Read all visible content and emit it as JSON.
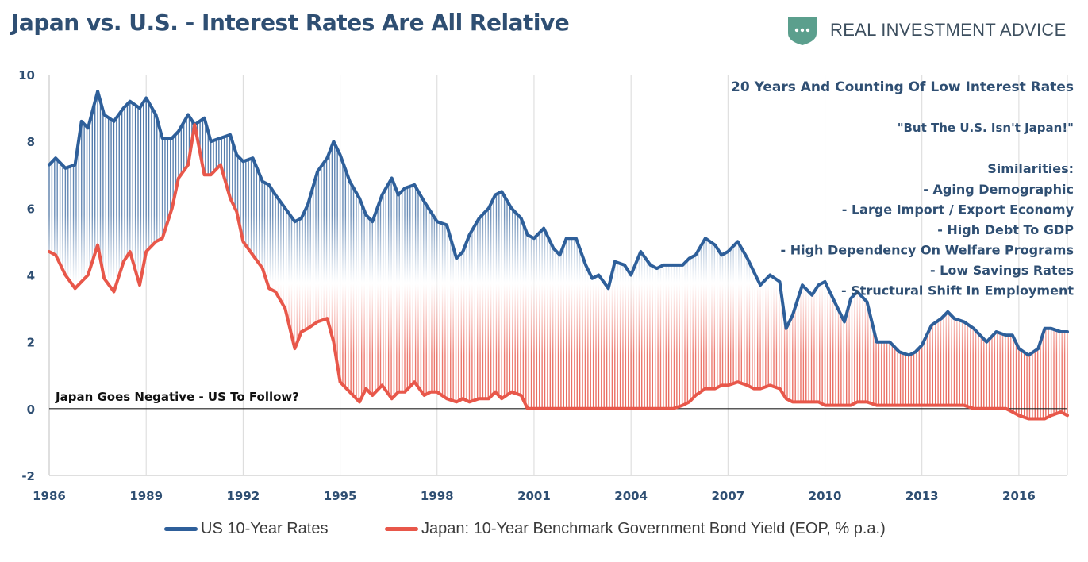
{
  "header": {
    "title": "Japan vs. U.S. - Interest Rates Are All Relative",
    "brand_name_left": "REAL INVESTMENT",
    "brand_name_right": "ADVICE"
  },
  "colors": {
    "us_line": "#2e5f9a",
    "japan_line": "#e8574a",
    "title": "#2f4f73",
    "logo_green": "#5b9f8d"
  },
  "annotations": {
    "headline": "20 Years And Counting Of Low Interest Rates",
    "quote": "\"But The U.S. Isn't Japan!\"",
    "similarities_title": "Similarities:",
    "similarities": [
      "- Aging Demographic",
      "- Large Import /  Export Economy",
      "- High Debt To GDP",
      "- High Dependency On Welfare Programs",
      "- Low Savings Rates",
      "- Structural Shift In Employment"
    ],
    "negative_note": "Japan Goes Negative - US To Follow?"
  },
  "chart_data": {
    "type": "line",
    "x_ticks": [
      "1986",
      "1989",
      "1992",
      "1995",
      "1998",
      "2001",
      "2004",
      "2007",
      "2010",
      "2013",
      "2016"
    ],
    "y_ticks": [
      "10",
      "8",
      "6",
      "4",
      "2",
      "0",
      "-2"
    ],
    "xlim": [
      1986,
      2017.5
    ],
    "ylim": [
      -2,
      10
    ],
    "grid": "vertical",
    "legend_position": "bottom",
    "series": [
      {
        "name": "US 10-Year Rates",
        "color": "#2e5f9a",
        "points": [
          [
            1986.0,
            7.3
          ],
          [
            1986.2,
            7.5
          ],
          [
            1986.5,
            7.2
          ],
          [
            1986.8,
            7.3
          ],
          [
            1987.0,
            8.6
          ],
          [
            1987.2,
            8.4
          ],
          [
            1987.5,
            9.5
          ],
          [
            1987.7,
            8.8
          ],
          [
            1988.0,
            8.6
          ],
          [
            1988.3,
            9.0
          ],
          [
            1988.5,
            9.2
          ],
          [
            1988.8,
            9.0
          ],
          [
            1989.0,
            9.3
          ],
          [
            1989.3,
            8.8
          ],
          [
            1989.5,
            8.1
          ],
          [
            1989.8,
            8.1
          ],
          [
            1990.0,
            8.3
          ],
          [
            1990.3,
            8.8
          ],
          [
            1990.5,
            8.5
          ],
          [
            1990.8,
            8.7
          ],
          [
            1991.0,
            8.0
          ],
          [
            1991.3,
            8.1
          ],
          [
            1991.6,
            8.2
          ],
          [
            1991.8,
            7.6
          ],
          [
            1992.0,
            7.4
          ],
          [
            1992.3,
            7.5
          ],
          [
            1992.6,
            6.8
          ],
          [
            1992.8,
            6.7
          ],
          [
            1993.0,
            6.4
          ],
          [
            1993.3,
            6.0
          ],
          [
            1993.6,
            5.6
          ],
          [
            1993.8,
            5.7
          ],
          [
            1994.0,
            6.1
          ],
          [
            1994.3,
            7.1
          ],
          [
            1994.6,
            7.5
          ],
          [
            1994.8,
            8.0
          ],
          [
            1995.0,
            7.6
          ],
          [
            1995.3,
            6.8
          ],
          [
            1995.6,
            6.3
          ],
          [
            1995.8,
            5.8
          ],
          [
            1996.0,
            5.6
          ],
          [
            1996.3,
            6.4
          ],
          [
            1996.6,
            6.9
          ],
          [
            1996.8,
            6.4
          ],
          [
            1997.0,
            6.6
          ],
          [
            1997.3,
            6.7
          ],
          [
            1997.6,
            6.2
          ],
          [
            1997.8,
            5.9
          ],
          [
            1998.0,
            5.6
          ],
          [
            1998.3,
            5.5
          ],
          [
            1998.6,
            4.5
          ],
          [
            1998.8,
            4.7
          ],
          [
            1999.0,
            5.2
          ],
          [
            1999.3,
            5.7
          ],
          [
            1999.6,
            6.0
          ],
          [
            1999.8,
            6.4
          ],
          [
            2000.0,
            6.5
          ],
          [
            2000.3,
            6.0
          ],
          [
            2000.6,
            5.7
          ],
          [
            2000.8,
            5.2
          ],
          [
            2001.0,
            5.1
          ],
          [
            2001.3,
            5.4
          ],
          [
            2001.6,
            4.8
          ],
          [
            2001.8,
            4.6
          ],
          [
            2002.0,
            5.1
          ],
          [
            2002.3,
            5.1
          ],
          [
            2002.6,
            4.3
          ],
          [
            2002.8,
            3.9
          ],
          [
            2003.0,
            4.0
          ],
          [
            2003.3,
            3.6
          ],
          [
            2003.5,
            4.4
          ],
          [
            2003.8,
            4.3
          ],
          [
            2004.0,
            4.0
          ],
          [
            2004.3,
            4.7
          ],
          [
            2004.6,
            4.3
          ],
          [
            2004.8,
            4.2
          ],
          [
            2005.0,
            4.3
          ],
          [
            2005.3,
            4.3
          ],
          [
            2005.6,
            4.3
          ],
          [
            2005.8,
            4.5
          ],
          [
            2006.0,
            4.6
          ],
          [
            2006.3,
            5.1
          ],
          [
            2006.6,
            4.9
          ],
          [
            2006.8,
            4.6
          ],
          [
            2007.0,
            4.7
          ],
          [
            2007.3,
            5.0
          ],
          [
            2007.6,
            4.5
          ],
          [
            2007.8,
            4.1
          ],
          [
            2008.0,
            3.7
          ],
          [
            2008.3,
            4.0
          ],
          [
            2008.6,
            3.8
          ],
          [
            2008.8,
            2.4
          ],
          [
            2009.0,
            2.8
          ],
          [
            2009.3,
            3.7
          ],
          [
            2009.6,
            3.4
          ],
          [
            2009.8,
            3.7
          ],
          [
            2010.0,
            3.8
          ],
          [
            2010.3,
            3.2
          ],
          [
            2010.6,
            2.6
          ],
          [
            2010.8,
            3.3
          ],
          [
            2011.0,
            3.5
          ],
          [
            2011.3,
            3.2
          ],
          [
            2011.6,
            2.0
          ],
          [
            2011.8,
            2.0
          ],
          [
            2012.0,
            2.0
          ],
          [
            2012.3,
            1.7
          ],
          [
            2012.6,
            1.6
          ],
          [
            2012.8,
            1.7
          ],
          [
            2013.0,
            1.9
          ],
          [
            2013.3,
            2.5
          ],
          [
            2013.6,
            2.7
          ],
          [
            2013.8,
            2.9
          ],
          [
            2014.0,
            2.7
          ],
          [
            2014.3,
            2.6
          ],
          [
            2014.6,
            2.4
          ],
          [
            2014.8,
            2.2
          ],
          [
            2015.0,
            2.0
          ],
          [
            2015.3,
            2.3
          ],
          [
            2015.6,
            2.2
          ],
          [
            2015.8,
            2.2
          ],
          [
            2016.0,
            1.8
          ],
          [
            2016.3,
            1.6
          ],
          [
            2016.6,
            1.8
          ],
          [
            2016.8,
            2.4
          ],
          [
            2017.0,
            2.4
          ],
          [
            2017.3,
            2.3
          ],
          [
            2017.5,
            2.3
          ]
        ]
      },
      {
        "name": "Japan: 10-Year Benchmark Government Bond Yield (EOP, % p.a.)",
        "color": "#e8574a",
        "points": [
          [
            1986.0,
            4.7
          ],
          [
            1986.2,
            4.6
          ],
          [
            1986.5,
            4.0
          ],
          [
            1986.8,
            3.6
          ],
          [
            1987.0,
            3.8
          ],
          [
            1987.2,
            4.0
          ],
          [
            1987.5,
            4.9
          ],
          [
            1987.7,
            3.9
          ],
          [
            1988.0,
            3.5
          ],
          [
            1988.3,
            4.4
          ],
          [
            1988.5,
            4.7
          ],
          [
            1988.8,
            3.7
          ],
          [
            1989.0,
            4.7
          ],
          [
            1989.3,
            5.0
          ],
          [
            1989.5,
            5.1
          ],
          [
            1989.8,
            6.0
          ],
          [
            1990.0,
            6.9
          ],
          [
            1990.3,
            7.3
          ],
          [
            1990.5,
            8.5
          ],
          [
            1990.8,
            7.0
          ],
          [
            1991.0,
            7.0
          ],
          [
            1991.3,
            7.3
          ],
          [
            1991.6,
            6.3
          ],
          [
            1991.8,
            5.9
          ],
          [
            1992.0,
            5.0
          ],
          [
            1992.3,
            4.6
          ],
          [
            1992.6,
            4.2
          ],
          [
            1992.8,
            3.6
          ],
          [
            1993.0,
            3.5
          ],
          [
            1993.3,
            3.0
          ],
          [
            1993.6,
            1.8
          ],
          [
            1993.8,
            2.3
          ],
          [
            1994.0,
            2.4
          ],
          [
            1994.3,
            2.6
          ],
          [
            1994.6,
            2.7
          ],
          [
            1994.8,
            2.0
          ],
          [
            1995.0,
            0.8
          ],
          [
            1995.3,
            0.5
          ],
          [
            1995.6,
            0.2
          ],
          [
            1995.8,
            0.6
          ],
          [
            1996.0,
            0.4
          ],
          [
            1996.3,
            0.7
          ],
          [
            1996.6,
            0.3
          ],
          [
            1996.8,
            0.5
          ],
          [
            1997.0,
            0.5
          ],
          [
            1997.3,
            0.8
          ],
          [
            1997.6,
            0.4
          ],
          [
            1997.8,
            0.5
          ],
          [
            1998.0,
            0.5
          ],
          [
            1998.3,
            0.3
          ],
          [
            1998.6,
            0.2
          ],
          [
            1998.8,
            0.3
          ],
          [
            1999.0,
            0.2
          ],
          [
            1999.3,
            0.3
          ],
          [
            1999.6,
            0.3
          ],
          [
            1999.8,
            0.5
          ],
          [
            2000.0,
            0.3
          ],
          [
            2000.3,
            0.5
          ],
          [
            2000.6,
            0.4
          ],
          [
            2000.8,
            0.0
          ],
          [
            2001.0,
            0.0
          ],
          [
            2001.3,
            0.0
          ],
          [
            2001.6,
            0.0
          ],
          [
            2001.8,
            0.0
          ],
          [
            2002.0,
            0.0
          ],
          [
            2002.3,
            0.0
          ],
          [
            2002.6,
            0.0
          ],
          [
            2002.8,
            0.0
          ],
          [
            2003.0,
            0.0
          ],
          [
            2003.3,
            0.0
          ],
          [
            2003.5,
            0.0
          ],
          [
            2003.8,
            0.0
          ],
          [
            2004.0,
            0.0
          ],
          [
            2004.3,
            0.0
          ],
          [
            2004.6,
            0.0
          ],
          [
            2004.8,
            0.0
          ],
          [
            2005.0,
            0.0
          ],
          [
            2005.3,
            0.0
          ],
          [
            2005.6,
            0.1
          ],
          [
            2005.8,
            0.2
          ],
          [
            2006.0,
            0.4
          ],
          [
            2006.3,
            0.6
          ],
          [
            2006.6,
            0.6
          ],
          [
            2006.8,
            0.7
          ],
          [
            2007.0,
            0.7
          ],
          [
            2007.3,
            0.8
          ],
          [
            2007.6,
            0.7
          ],
          [
            2007.8,
            0.6
          ],
          [
            2008.0,
            0.6
          ],
          [
            2008.3,
            0.7
          ],
          [
            2008.6,
            0.6
          ],
          [
            2008.8,
            0.3
          ],
          [
            2009.0,
            0.2
          ],
          [
            2009.3,
            0.2
          ],
          [
            2009.6,
            0.2
          ],
          [
            2009.8,
            0.2
          ],
          [
            2010.0,
            0.1
          ],
          [
            2010.3,
            0.1
          ],
          [
            2010.6,
            0.1
          ],
          [
            2010.8,
            0.1
          ],
          [
            2011.0,
            0.2
          ],
          [
            2011.3,
            0.2
          ],
          [
            2011.6,
            0.1
          ],
          [
            2011.8,
            0.1
          ],
          [
            2012.0,
            0.1
          ],
          [
            2012.3,
            0.1
          ],
          [
            2012.6,
            0.1
          ],
          [
            2012.8,
            0.1
          ],
          [
            2013.0,
            0.1
          ],
          [
            2013.3,
            0.1
          ],
          [
            2013.6,
            0.1
          ],
          [
            2013.8,
            0.1
          ],
          [
            2014.0,
            0.1
          ],
          [
            2014.3,
            0.1
          ],
          [
            2014.6,
            0.0
          ],
          [
            2014.8,
            0.0
          ],
          [
            2015.0,
            0.0
          ],
          [
            2015.3,
            0.0
          ],
          [
            2015.6,
            0.0
          ],
          [
            2015.8,
            -0.1
          ],
          [
            2016.0,
            -0.2
          ],
          [
            2016.3,
            -0.3
          ],
          [
            2016.6,
            -0.3
          ],
          [
            2016.8,
            -0.3
          ],
          [
            2017.0,
            -0.2
          ],
          [
            2017.3,
            -0.1
          ],
          [
            2017.5,
            -0.2
          ]
        ]
      }
    ]
  }
}
